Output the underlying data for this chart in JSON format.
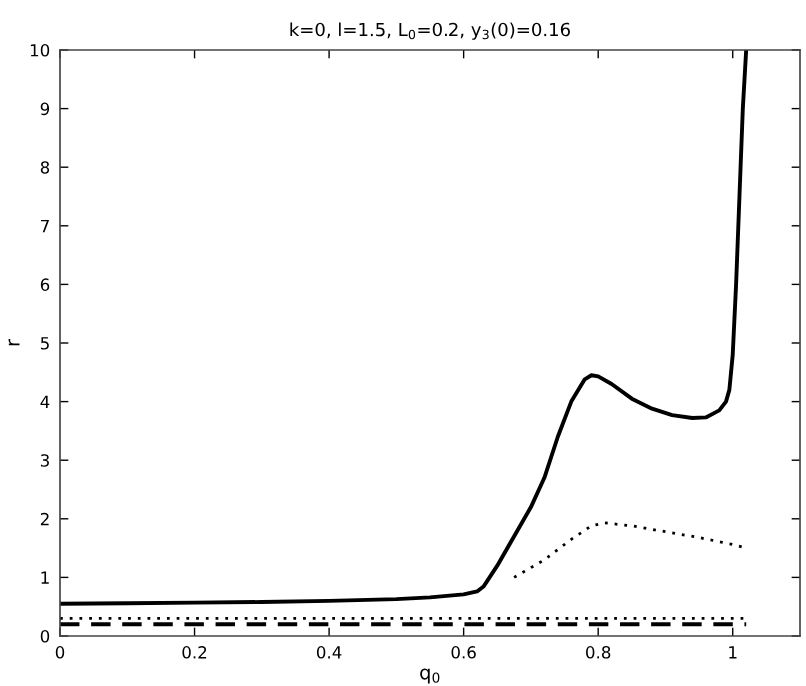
{
  "chart_data": {
    "type": "line",
    "title": "k=0, l=1.5, L$_{0}$=0.2, y$_{3}$(0)=0.16",
    "xlabel": "q$_{0}$",
    "ylabel": "r",
    "xlim": [
      0,
      1.1
    ],
    "ylim": [
      0,
      10
    ],
    "xticks": [
      0,
      0.2,
      0.4,
      0.6,
      0.8,
      1
    ],
    "yticks": [
      0,
      1,
      2,
      3,
      4,
      5,
      6,
      7,
      8,
      9,
      10
    ],
    "grid": false,
    "legend": false,
    "series": [
      {
        "color": "#000000",
        "line_style": "solid",
        "x": [
          0,
          0.1,
          0.2,
          0.3,
          0.4,
          0.5,
          0.55,
          0.6,
          0.62,
          0.63,
          0.65,
          0.68,
          0.7,
          0.72,
          0.74,
          0.76,
          0.78,
          0.79,
          0.8,
          0.82,
          0.85,
          0.88,
          0.91,
          0.94,
          0.96,
          0.98,
          0.99,
          0.995,
          1.0,
          1.005,
          1.01,
          1.015,
          1.02
        ],
        "values": [
          0.55,
          0.56,
          0.57,
          0.58,
          0.6,
          0.63,
          0.66,
          0.71,
          0.76,
          0.85,
          1.2,
          1.8,
          2.2,
          2.7,
          3.4,
          4.0,
          4.38,
          4.45,
          4.43,
          4.3,
          4.05,
          3.88,
          3.77,
          3.72,
          3.73,
          3.85,
          4.0,
          4.2,
          4.8,
          6.0,
          7.5,
          9.0,
          10
        ]
      },
      {
        "color": "#000000",
        "line_style": "dotted",
        "x": [
          0.675,
          0.72,
          0.76,
          0.79,
          0.81,
          0.85,
          0.9,
          0.95,
          1.0,
          1.02
        ],
        "values": [
          1.0,
          1.3,
          1.65,
          1.88,
          1.93,
          1.88,
          1.78,
          1.68,
          1.56,
          1.5
        ]
      },
      {
        "color": "#000000",
        "line_style": "dotted",
        "x": [
          0,
          1.02
        ],
        "values": [
          0.3,
          0.3
        ]
      },
      {
        "color": "#000000",
        "line_style": "dashed",
        "x": [
          0,
          1.02
        ],
        "values": [
          0.2,
          0.2
        ]
      }
    ]
  }
}
